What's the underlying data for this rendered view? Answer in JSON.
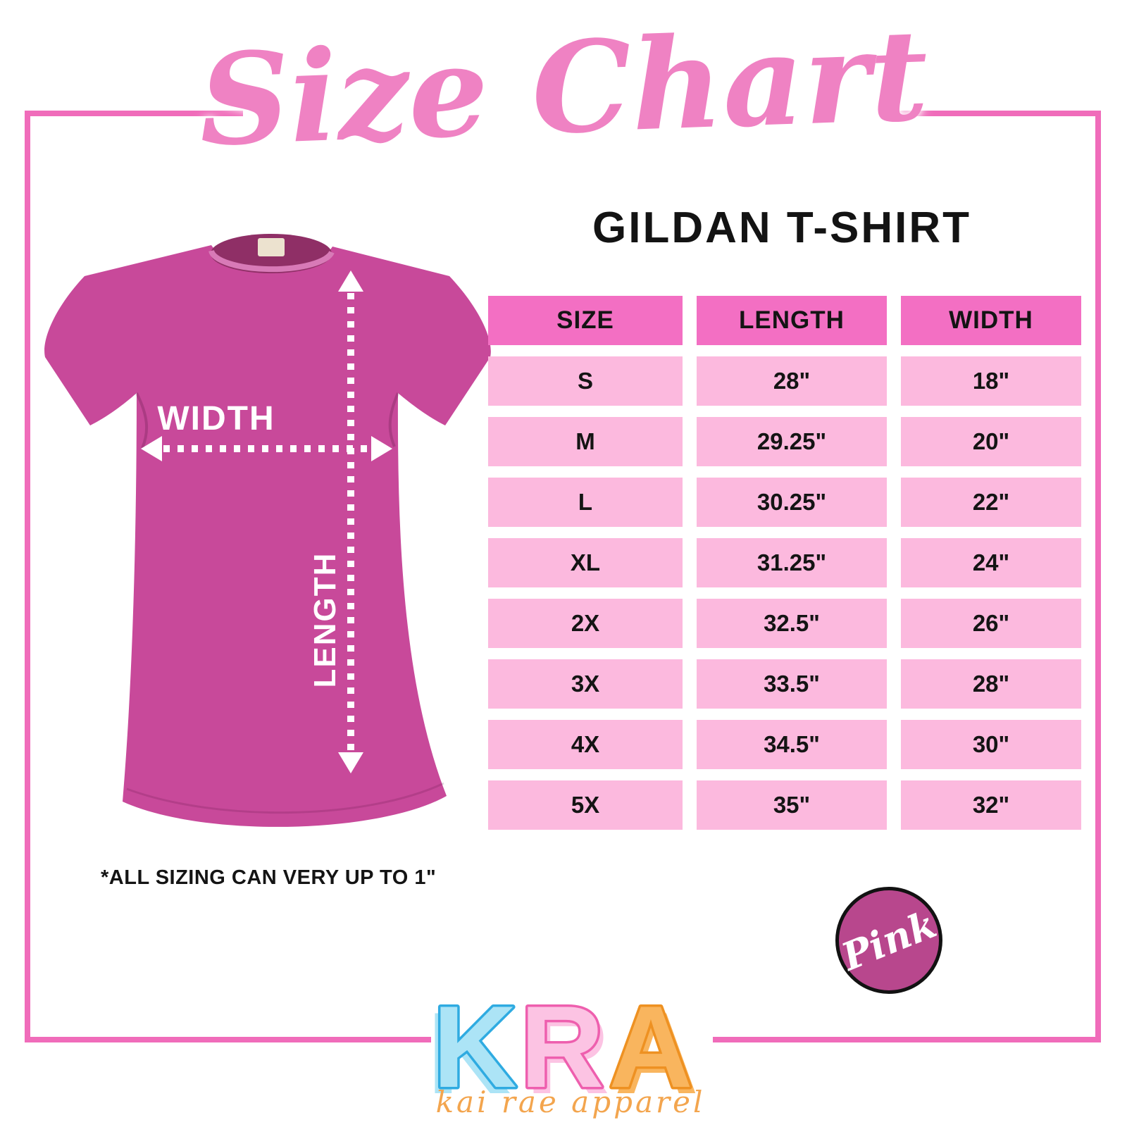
{
  "title": "Size Chart",
  "subtitle": "GILDAN T-SHIRT",
  "shirt": {
    "width_label": "WIDTH",
    "length_label": "LENGTH"
  },
  "note": "*ALL SIZING CAN VERY UP TO 1\"",
  "badge": {
    "label": "Pink"
  },
  "logo": {
    "letters": [
      "K",
      "R",
      "A"
    ],
    "tagline": "kai rae apparel"
  },
  "chart_data": {
    "type": "table",
    "title": "GILDAN T-SHIRT",
    "unit": "inches",
    "columns": [
      "SIZE",
      "LENGTH",
      "WIDTH"
    ],
    "rows": [
      [
        "S",
        "28\"",
        "18\""
      ],
      [
        "M",
        "29.25\"",
        "20\""
      ],
      [
        "L",
        "30.25\"",
        "22\""
      ],
      [
        "XL",
        "31.25\"",
        "24\""
      ],
      [
        "2X",
        "32.5\"",
        "26\""
      ],
      [
        "3X",
        "33.5\"",
        "28\""
      ],
      [
        "4X",
        "34.5\"",
        "30\""
      ],
      [
        "5X",
        "35\"",
        "32\""
      ]
    ]
  },
  "colors": {
    "frame_pink": "#f06cba",
    "title_pink": "#ef82c3",
    "table_header_pink": "#f36fc3",
    "table_row_pink": "#fcb9de",
    "shirt_pink": "#c8499a",
    "badge_pink": "#b8478d",
    "logo_blue": "#ace4f6",
    "logo_blue_outline": "#2fabe1",
    "logo_pink": "#fcc3e3",
    "logo_pink_outline": "#ee5fae",
    "logo_orange": "#f9b55e",
    "logo_orange_outline": "#ee9122",
    "tagline_orange": "#f3a54e"
  }
}
